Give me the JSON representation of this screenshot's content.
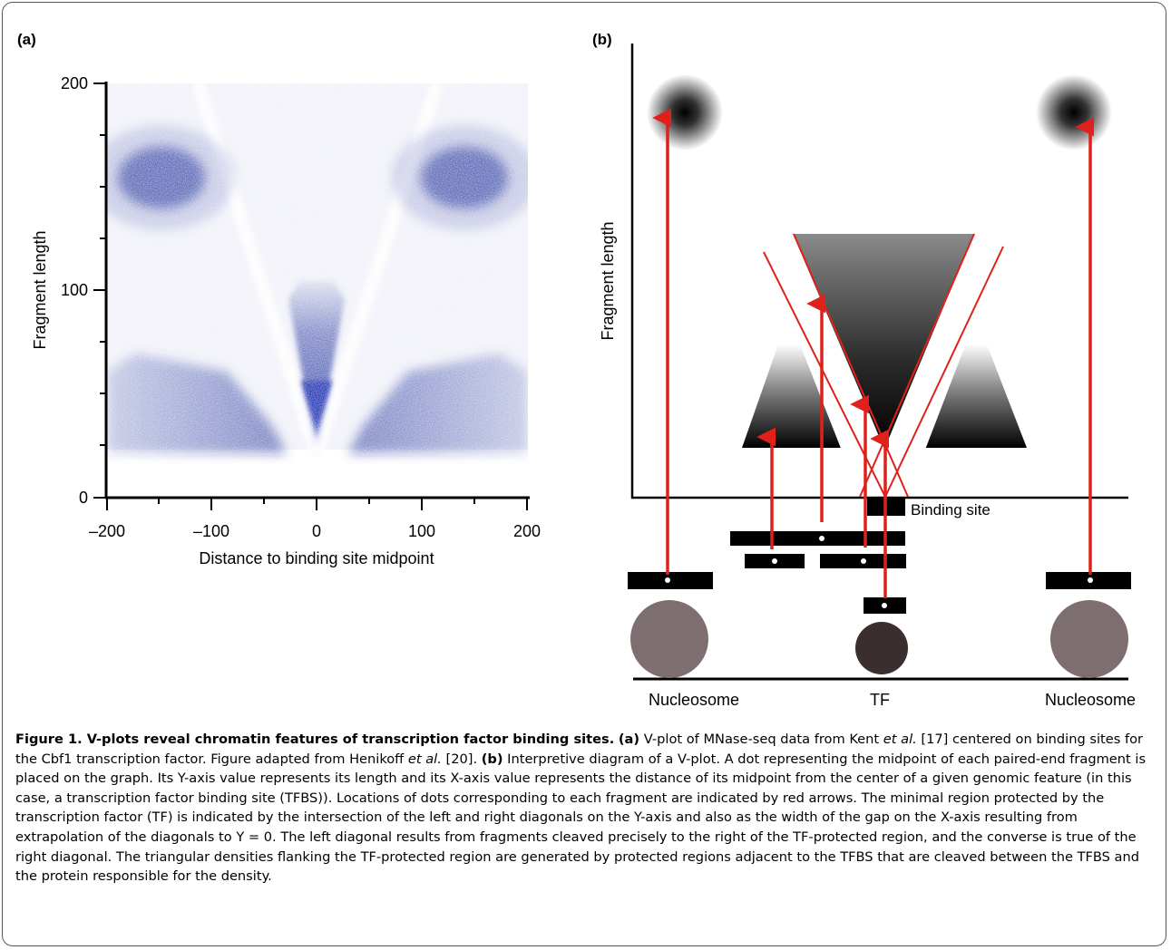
{
  "figure": {
    "panel_a_label": "(a)",
    "panel_b_label": "(b)"
  },
  "chart_data": {
    "type": "heatmap",
    "title": "",
    "xlabel": "Distance to binding site midpoint",
    "ylabel": "Fragment length",
    "xlim": [
      -200,
      200
    ],
    "ylim": [
      0,
      200
    ],
    "x_ticks": [
      "–200",
      "–100",
      "0",
      "100",
      "200"
    ],
    "y_ticks": [
      "0",
      "100",
      "200"
    ],
    "colormap": "#3b4aa8",
    "density_regions": [
      {
        "label": "central V",
        "x_center": 0,
        "y_range": [
          20,
          100
        ]
      },
      {
        "label": "left flank",
        "x_range": [
          -200,
          -20
        ],
        "y_range": [
          20,
          60
        ]
      },
      {
        "label": "right flank",
        "x_range": [
          20,
          200
        ],
        "y_range": [
          20,
          60
        ]
      },
      {
        "label": "left nucleosome cluster",
        "x_center": -150,
        "y_center": 150
      },
      {
        "label": "right nucleosome cluster",
        "x_center": 150,
        "y_center": 150
      }
    ]
  },
  "diagram": {
    "ylabel": "Fragment length",
    "binding_site_label": "Binding site",
    "bottom_labels": [
      "Nucleosome",
      "TF",
      "Nucleosome"
    ],
    "arrow_color": "#e0201b"
  },
  "caption": {
    "title": "Figure 1. V-plots reveal chromatin features of transcription factor binding sites.",
    "a_label": "(a)",
    "a_text_1": " V-plot of MNase-seq data from Kent ",
    "a_etal_1": "et al.",
    "a_text_2": " [17] centered on binding sites for the Cbf1 transcription factor. Figure adapted from Henikoff ",
    "a_etal_2": "et al.",
    "a_text_3": " [20]. ",
    "b_label": "(b)",
    "b_text": " Interpretive diagram of a V-plot. A dot representing the midpoint of each paired-end fragment is placed on the graph. Its Y-axis value represents its length and its X-axis value represents the distance of its midpoint from the center of a given genomic feature (in this case, a transcription factor binding site (TFBS)). Locations of dots corresponding to each fragment are indicated by red arrows. The minimal region protected by the transcription factor (TF) is indicated by the intersection of the left and right diagonals on the Y-axis and also as the width of the gap on the X-axis resulting from extrapolation of the diagonals to Y = 0. The left diagonal results from fragments cleaved precisely to the right of the TF-protected region, and the converse is true of the right diagonal. The triangular densities flanking the TF-protected region are generated by protected regions adjacent to the TFBS that are cleaved between the TFBS and the protein responsible for the density."
  }
}
